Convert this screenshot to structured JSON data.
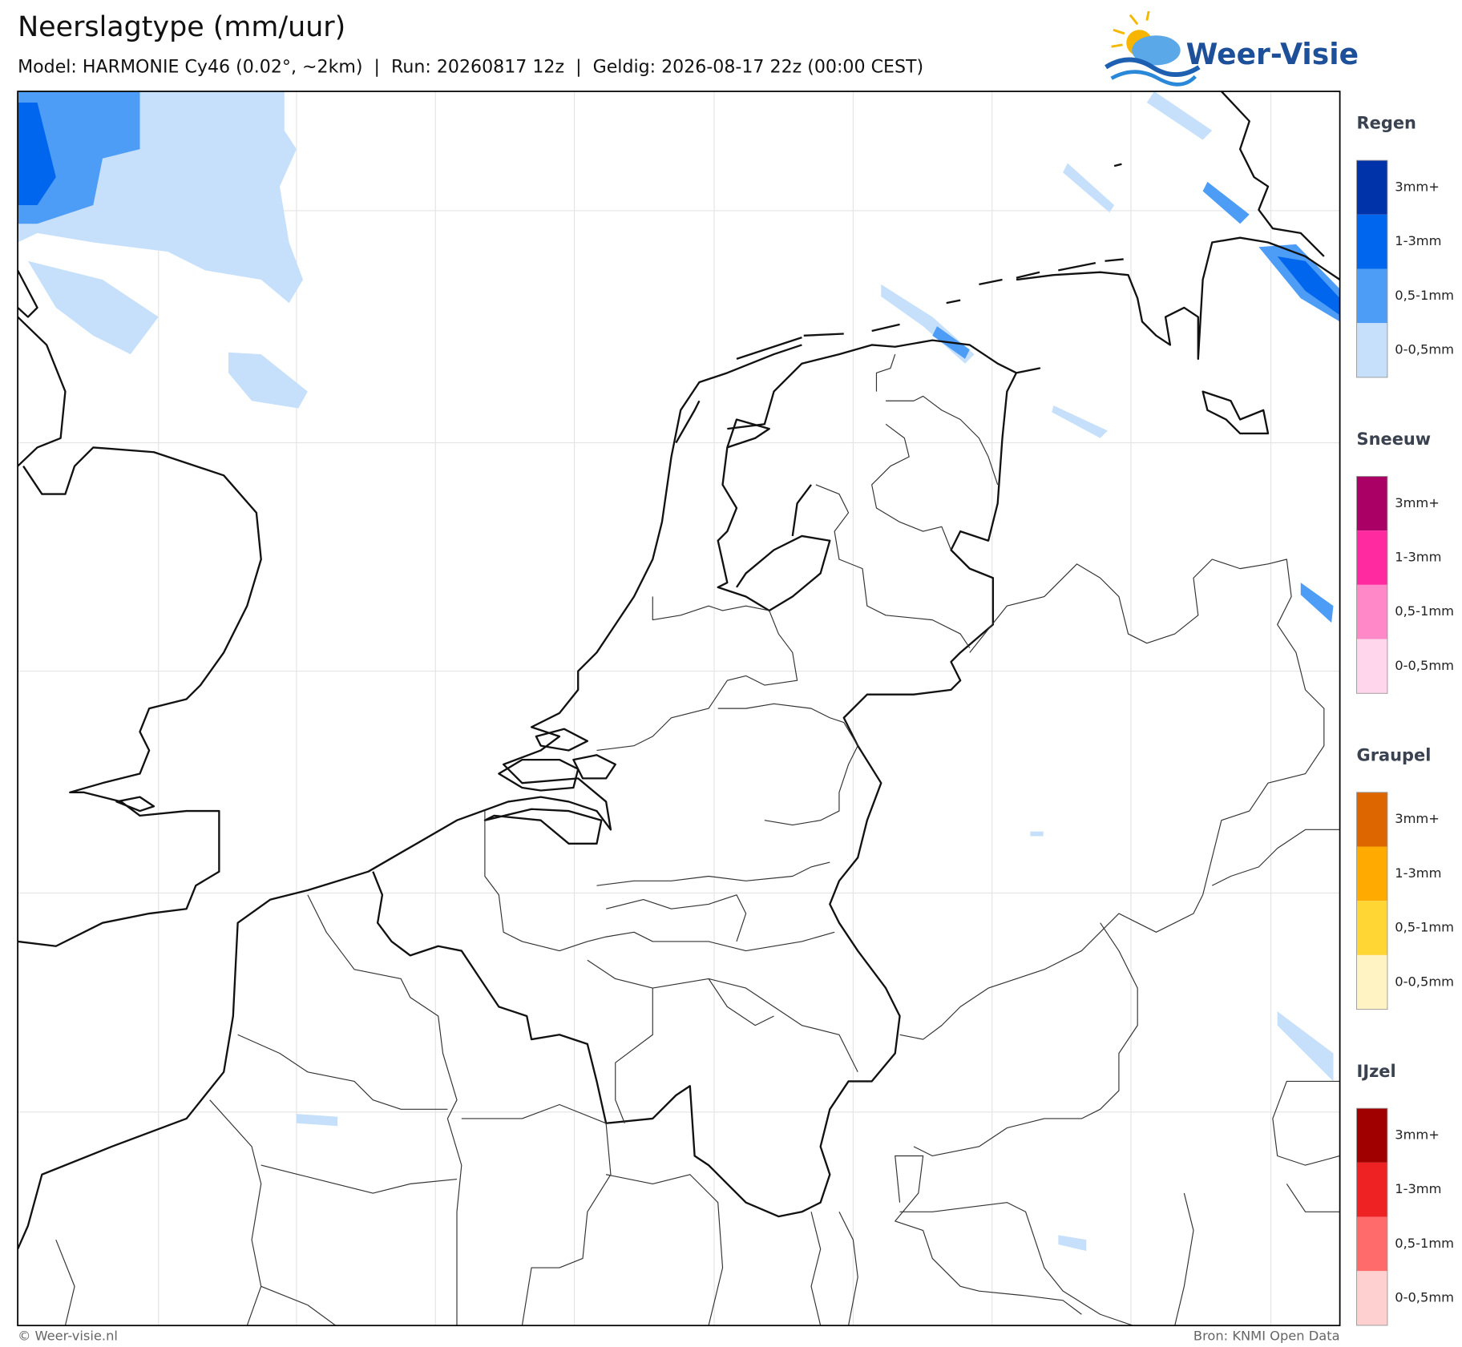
{
  "header": {
    "title": "Neerslagtype (mm/uur)",
    "subtitle": "Model: HARMONIE Cy46 (0.02°, ~2km)  |  Run: 20260817 12z  |  Geldig: 2026-08-17 22z (00:00 CEST)"
  },
  "logo": {
    "text": "Weer-Visie"
  },
  "legend": {
    "groups": [
      {
        "title": "Regen",
        "items": [
          {
            "label": "3mm+",
            "color": "#0033aa"
          },
          {
            "label": "1-3mm",
            "color": "#0066ee"
          },
          {
            "label": "0,5-1mm",
            "color": "#4d9cf5"
          },
          {
            "label": "0-0,5mm",
            "color": "#c6e0fb"
          }
        ]
      },
      {
        "title": "Sneeuw",
        "items": [
          {
            "label": "3mm+",
            "color": "#aa0066"
          },
          {
            "label": "1-3mm",
            "color": "#ff2aa0"
          },
          {
            "label": "0,5-1mm",
            "color": "#ff88c8"
          },
          {
            "label": "0-0,5mm",
            "color": "#ffd6ec"
          }
        ]
      },
      {
        "title": "Graupel",
        "items": [
          {
            "label": "3mm+",
            "color": "#dd6600"
          },
          {
            "label": "1-3mm",
            "color": "#ffaa00"
          },
          {
            "label": "0,5-1mm",
            "color": "#ffd633"
          },
          {
            "label": "0-0,5mm",
            "color": "#fff3c4"
          }
        ]
      },
      {
        "title": "IJzel",
        "items": [
          {
            "label": "3mm+",
            "color": "#a00000"
          },
          {
            "label": "1-3mm",
            "color": "#ee2222"
          },
          {
            "label": "0,5-1mm",
            "color": "#ff6b6b"
          },
          {
            "label": "0-0,5mm",
            "color": "#ffd0d0"
          }
        ]
      }
    ]
  },
  "footer": {
    "left": "© Weer-visie.nl",
    "right": "Bron: KNMI Open Data"
  }
}
